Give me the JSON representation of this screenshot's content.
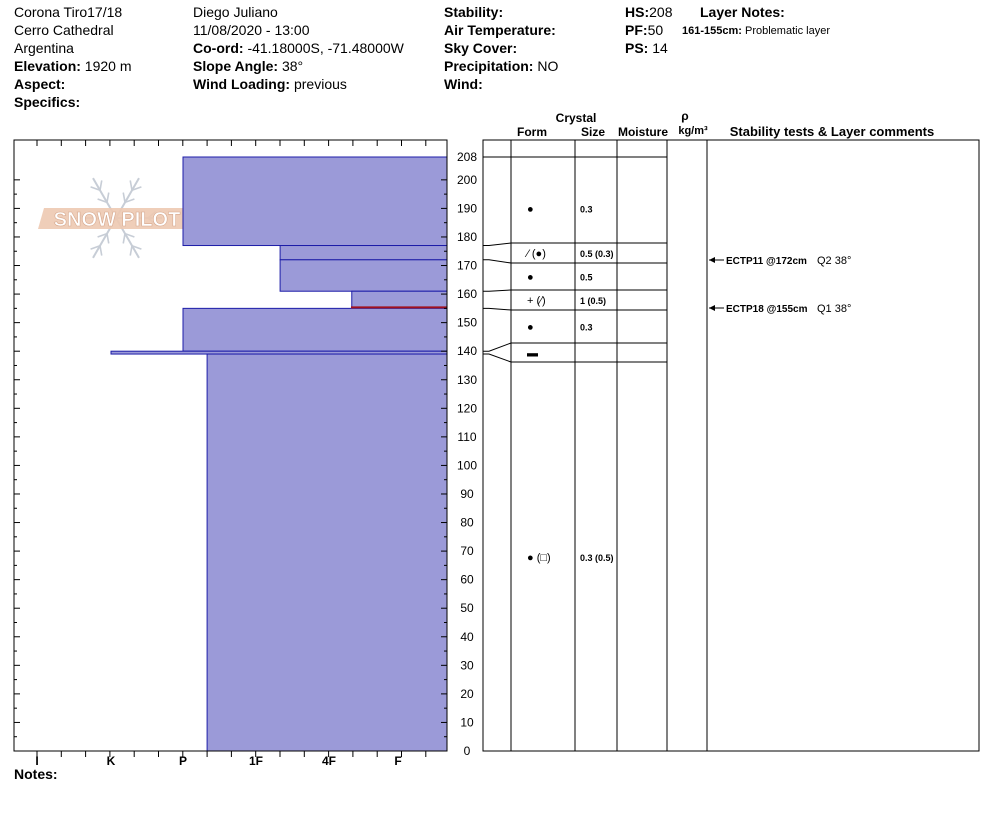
{
  "header": {
    "site": "Corona Tiro17/18",
    "area": "Cerro Cathedral",
    "country": "Argentina",
    "elevation_label": "Elevation:",
    "elevation": "1920 m",
    "aspect_label": "Aspect:",
    "specifics_label": "Specifics:",
    "observer": "Diego Juliano",
    "datetime": "11/08/2020 - 13:00",
    "coord_label": "Co-ord:",
    "coord": "-41.18000S, -71.48000W",
    "slope_label": "Slope Angle:",
    "slope": "38°",
    "wind_loading_label": "Wind Loading:",
    "wind_loading": "previous",
    "stability_label": "Stability:",
    "air_temp_label": "Air Temperature:",
    "sky_label": "Sky Cover:",
    "precip_label": "Precipitation:",
    "precip": "NO",
    "wind_label": "Wind:",
    "hs_label": "HS:",
    "hs": "208",
    "pf_label": "PF:",
    "pf": "50",
    "ps_label": "PS:",
    "ps": "14",
    "layer_notes_label": "Layer Notes:",
    "layer_note_range": "161-155cm:",
    "layer_note_text": "Problematic layer",
    "notes_label": "Notes:"
  },
  "watermark": "SNOW PILOT",
  "chart_data": {
    "type": "bar",
    "hardness_scale": [
      "I",
      "K",
      "P",
      "1F",
      "4F",
      "F"
    ],
    "height_axis": {
      "min": 0,
      "max": 208,
      "ticks": [
        0,
        10,
        20,
        30,
        40,
        50,
        60,
        70,
        80,
        90,
        100,
        110,
        120,
        130,
        140,
        150,
        160,
        170,
        180,
        190,
        200,
        208
      ]
    },
    "layers": [
      {
        "top": 208,
        "bottom": 177,
        "hardness": "P"
      },
      {
        "top": 177,
        "bottom": 172,
        "hardness": "1F-4F"
      },
      {
        "top": 172,
        "bottom": 161,
        "hardness": "1F+"
      },
      {
        "top": 161,
        "bottom": 155,
        "hardness": "4F-F"
      },
      {
        "top": 155,
        "bottom": 140,
        "hardness": "P"
      },
      {
        "top": 140,
        "bottom": 139,
        "hardness": "K"
      },
      {
        "top": 139,
        "bottom": 0,
        "hardness": "P-1F"
      }
    ],
    "table_headers": {
      "crystal": "Crystal",
      "form": "Form",
      "size": "Size",
      "moisture": "Moisture",
      "rho": "ρ",
      "density_unit": "kg/m³",
      "comments": "Stability tests & Layer comments"
    },
    "rows": [
      {
        "top": 208,
        "bottom": 177,
        "form": "●",
        "size": "0.3"
      },
      {
        "top": 177,
        "bottom": 172,
        "form": "⁄ (●)",
        "size": "0.5 (0.3)"
      },
      {
        "top": 172,
        "bottom": 161,
        "form": "●",
        "size": "0.5"
      },
      {
        "top": 161,
        "bottom": 155,
        "form": "+ (⁄)",
        "size": "1 (0.5)"
      },
      {
        "top": 155,
        "bottom": 140,
        "form": "●",
        "size": "0.3"
      },
      {
        "top": 140,
        "bottom": 139,
        "form": "▬",
        "size": ""
      },
      {
        "top": 139,
        "bottom": 0,
        "form": "● (□)",
        "size": "0.3 (0.5)"
      }
    ],
    "stability_tests": [
      {
        "depth": 172,
        "test": "ECTP11 @172cm",
        "quality": "Q2 38°"
      },
      {
        "depth": 155,
        "test": "ECTP18 @155cm",
        "quality": "Q1 38°"
      }
    ],
    "colors": {
      "fill": "#9b9ad8",
      "stroke": "#1c1ca8",
      "weak_layer": "#a01020"
    }
  }
}
